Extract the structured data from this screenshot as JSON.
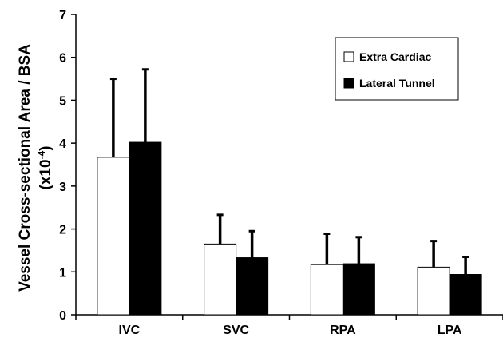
{
  "chart_data": {
    "type": "bar",
    "ylabel_line1": "Vessel Cross-sectional Area / BSA",
    "ylabel_line2_prefix": "(x10",
    "ylabel_line2_exp": "-4",
    "ylabel_line2_suffix": ")",
    "xlabel": "",
    "ylim": [
      0,
      7
    ],
    "yticks": [
      0,
      1,
      2,
      3,
      4,
      5,
      6,
      7
    ],
    "categories": [
      "IVC",
      "SVC",
      "RPA",
      "LPA"
    ],
    "series": [
      {
        "name": "Extra Cardiac",
        "color": "#ffffff",
        "values": [
          3.67,
          1.65,
          1.17,
          1.11
        ],
        "error": [
          1.83,
          0.68,
          0.72,
          0.61
        ]
      },
      {
        "name": "Lateral Tunnel",
        "color": "#000000",
        "values": [
          4.02,
          1.33,
          1.19,
          0.94
        ],
        "error": [
          1.7,
          0.62,
          0.62,
          0.41
        ]
      }
    ],
    "legend_position": "top-right",
    "grid": false,
    "error_bars": "upper"
  }
}
